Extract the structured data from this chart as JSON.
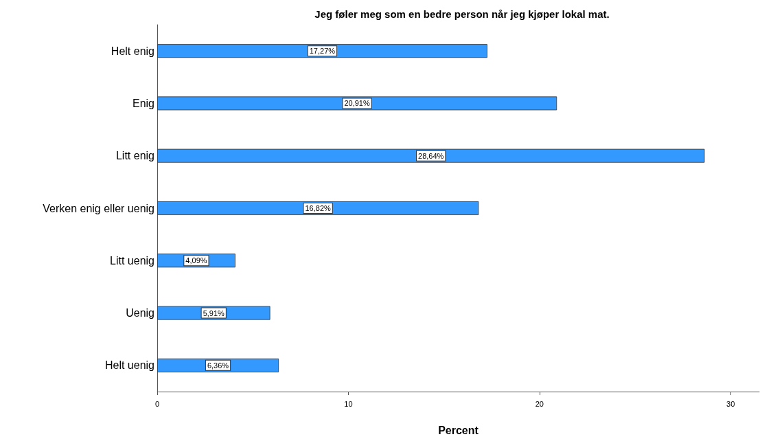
{
  "chart_data": {
    "type": "bar",
    "orientation": "horizontal",
    "title": "Jeg føler meg som en bedre person når jeg kjøper lokal mat.",
    "xlabel": "Percent",
    "categories": [
      "Helt enig",
      "Enig",
      "Litt enig",
      "Verken enig eller uenig",
      "Litt uenig",
      "Uenig",
      "Helt uenig"
    ],
    "values": [
      17.27,
      20.91,
      28.64,
      16.82,
      4.09,
      5.91,
      6.36
    ],
    "value_labels": [
      "17,27%",
      "20,91%",
      "28,64%",
      "16,82%",
      "4,09%",
      "5,91%",
      "6,36%"
    ],
    "color": "#3399ff",
    "xlim": [
      0,
      31.5
    ],
    "xticks": [
      0,
      10,
      20,
      30
    ],
    "grid": false
  }
}
